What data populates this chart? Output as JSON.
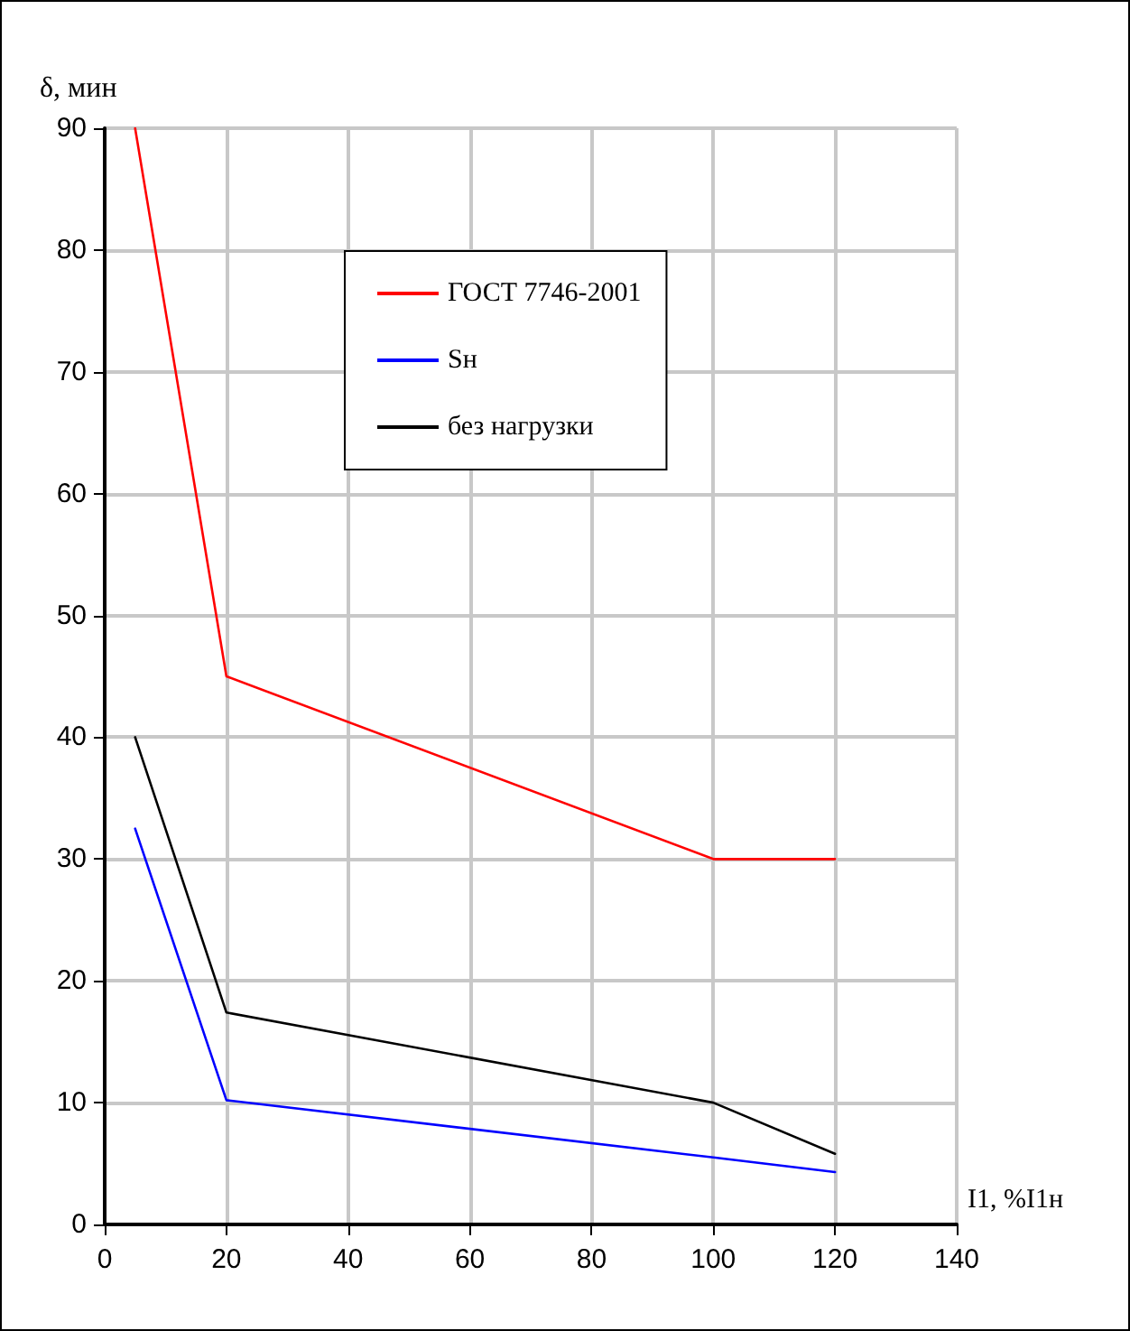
{
  "chart_data": {
    "type": "line",
    "xlabel": "I1, %I1н",
    "ylabel": "δ, мин",
    "xlim": [
      0,
      140
    ],
    "xticks": [
      0,
      20,
      40,
      60,
      80,
      100,
      120,
      140
    ],
    "ylim": [
      0,
      90
    ],
    "yticks": [
      0,
      10,
      20,
      30,
      40,
      50,
      60,
      70,
      80,
      90
    ],
    "grid": true,
    "legend": "top",
    "marker": "none",
    "line_style": "solid",
    "series": [
      {
        "name": "ГОСТ 7746-2001",
        "color": "#ff0000",
        "x": [
          5,
          20,
          100,
          120
        ],
        "values": [
          90,
          45,
          30,
          30
        ]
      },
      {
        "name": "Sн",
        "color": "#0000ff",
        "x": [
          5,
          20,
          100,
          120
        ],
        "values": [
          32.5,
          10.2,
          5.5,
          4.3
        ]
      },
      {
        "name": "без нагрузки",
        "color": "#000000",
        "x": [
          5,
          20,
          100,
          120
        ],
        "values": [
          40,
          17.4,
          10,
          5.8
        ]
      }
    ]
  }
}
